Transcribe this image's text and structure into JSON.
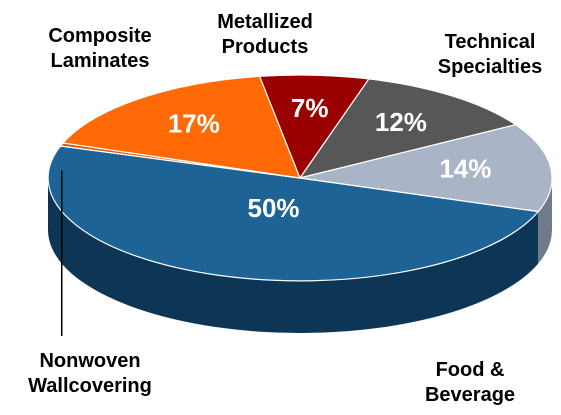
{
  "chart_data": {
    "type": "pie",
    "title": "",
    "slices": [
      {
        "label": [
          "Food &",
          "Beverage"
        ],
        "value": 50,
        "value_label": "50%",
        "color": "#1e6395",
        "side_color": "#0d3556"
      },
      {
        "label": [
          "Nonwoven",
          "Wallcovering"
        ],
        "value": 0.5,
        "value_label": "",
        "color": "#e05a00",
        "side_color": "#a33f00"
      },
      {
        "label": [
          "",
          ""
        ],
        "value": 17,
        "value_label": "17%",
        "color": "#ff6a06",
        "side_color": "#a33f00"
      },
      {
        "label": [
          "Composite",
          "Laminates"
        ],
        "value": 7,
        "value_label": "7%",
        "color": "#9b0000",
        "side_color": "#5c0000"
      },
      {
        "label": [
          "Metallized",
          "Products"
        ],
        "value": 12,
        "value_label": "12%",
        "color": "#575757",
        "side_color": "#2e2e2e"
      },
      {
        "label": [
          "Technical",
          "Specialties"
        ],
        "value": 14,
        "value_label": "14%",
        "color": "#a9b5c7",
        "side_color": "#6f7a8a"
      }
    ]
  }
}
